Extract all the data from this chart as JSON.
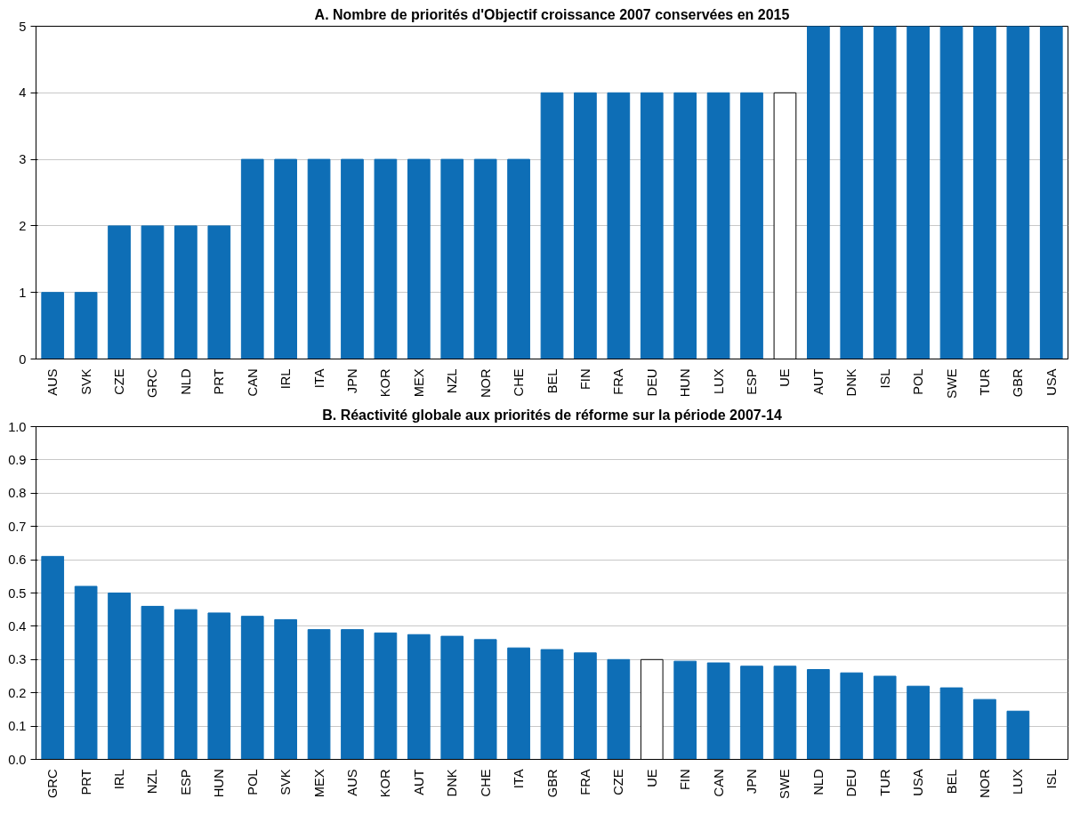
{
  "chart_data": [
    {
      "type": "bar",
      "title": "A. Nombre de priorités d'Objectif croissance 2007 conservées en 2015",
      "categories": [
        "AUS",
        "SVK",
        "CZE",
        "GRC",
        "NLD",
        "PRT",
        "CAN",
        "IRL",
        "ITA",
        "JPN",
        "KOR",
        "MEX",
        "NZL",
        "NOR",
        "CHE",
        "BEL",
        "FIN",
        "FRA",
        "DEU",
        "HUN",
        "LUX",
        "ESP",
        "UE",
        "AUT",
        "DNK",
        "ISL",
        "POL",
        "SWE",
        "TUR",
        "GBR",
        "USA"
      ],
      "values": [
        1,
        1,
        2,
        2,
        2,
        2,
        3,
        3,
        3,
        3,
        3,
        3,
        3,
        3,
        3,
        4,
        4,
        4,
        4,
        4,
        4,
        4,
        4,
        5,
        5,
        5,
        5,
        5,
        5,
        5,
        5
      ],
      "colors": [
        "#0e6eb6",
        "#0e6eb6",
        "#0e6eb6",
        "#0e6eb6",
        "#0e6eb6",
        "#0e6eb6",
        "#0e6eb6",
        "#0e6eb6",
        "#0e6eb6",
        "#0e6eb6",
        "#0e6eb6",
        "#0e6eb6",
        "#0e6eb6",
        "#0e6eb6",
        "#0e6eb6",
        "#0e6eb6",
        "#0e6eb6",
        "#0e6eb6",
        "#0e6eb6",
        "#0e6eb6",
        "#0e6eb6",
        "#0e6eb6",
        "#ffffff",
        "#0e6eb6",
        "#0e6eb6",
        "#0e6eb6",
        "#0e6eb6",
        "#0e6eb6",
        "#0e6eb6",
        "#0e6eb6",
        "#0e6eb6"
      ],
      "ylim": [
        0,
        5
      ],
      "yticks": [
        0,
        1,
        2,
        3,
        4,
        5
      ],
      "grid": "y"
    },
    {
      "type": "bar",
      "title": "B. Réactivité globale aux priorités de réforme sur la période 2007-14",
      "categories": [
        "GRC",
        "PRT",
        "IRL",
        "NZL",
        "ESP",
        "HUN",
        "POL",
        "SVK",
        "MEX",
        "AUS",
        "KOR",
        "AUT",
        "DNK",
        "CHE",
        "ITA",
        "GBR",
        "FRA",
        "CZE",
        "UE",
        "FIN",
        "CAN",
        "JPN",
        "SWE",
        "NLD",
        "DEU",
        "TUR",
        "USA",
        "BEL",
        "NOR",
        "LUX",
        "ISL"
      ],
      "values": [
        0.61,
        0.52,
        0.5,
        0.46,
        0.45,
        0.44,
        0.43,
        0.42,
        0.39,
        0.39,
        0.38,
        0.375,
        0.37,
        0.36,
        0.335,
        0.33,
        0.32,
        0.3,
        0.3,
        0.295,
        0.29,
        0.28,
        0.28,
        0.27,
        0.26,
        0.25,
        0.22,
        0.215,
        0.18,
        0.145,
        0
      ],
      "colors": [
        "#0e6eb6",
        "#0e6eb6",
        "#0e6eb6",
        "#0e6eb6",
        "#0e6eb6",
        "#0e6eb6",
        "#0e6eb6",
        "#0e6eb6",
        "#0e6eb6",
        "#0e6eb6",
        "#0e6eb6",
        "#0e6eb6",
        "#0e6eb6",
        "#0e6eb6",
        "#0e6eb6",
        "#0e6eb6",
        "#0e6eb6",
        "#0e6eb6",
        "#ffffff",
        "#0e6eb6",
        "#0e6eb6",
        "#0e6eb6",
        "#0e6eb6",
        "#0e6eb6",
        "#0e6eb6",
        "#0e6eb6",
        "#0e6eb6",
        "#0e6eb6",
        "#0e6eb6",
        "#0e6eb6",
        "#0e6eb6"
      ],
      "ylim": [
        0,
        1
      ],
      "yticks": [
        {
          "value": 0,
          "label": "0.0"
        },
        0.1,
        0.2,
        0.3,
        0.4,
        0.5,
        0.6,
        0.7,
        0.8,
        0.9,
        {
          "value": 1,
          "label": "1.0"
        }
      ],
      "grid": "y"
    }
  ]
}
